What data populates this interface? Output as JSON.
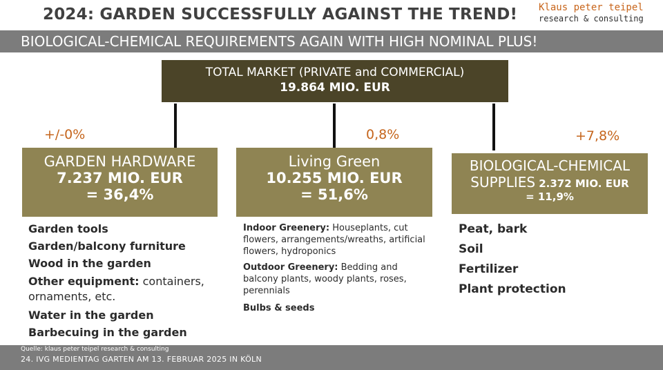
{
  "header": {
    "title": "2024: GARDEN SUCCESSFULLY AGAINST THE TREND!",
    "logo_line1": "Klaus peter teipel",
    "logo_line2": "research & consulting"
  },
  "subtitle": "BIOLOGICAL-CHEMICAL REQUIREMENTS AGAIN WITH HIGH NOMINAL PLUS!",
  "total": {
    "label": "TOTAL MARKET (PRIVATE and COMMERCIAL)",
    "value": "19.864 MIO. EUR"
  },
  "segments": [
    {
      "change": "+/-0%",
      "name": "GARDEN HARDWARE",
      "value": "7.237 MIO. EUR",
      "share": "= 36,4%",
      "items": [
        {
          "bold": "Garden tools",
          "plain": ""
        },
        {
          "bold": "Garden/balcony furniture",
          "plain": ""
        },
        {
          "bold": "Wood in the garden",
          "plain": ""
        },
        {
          "bold": "Other equipment:",
          "plain": " containers, ornaments, etc."
        },
        {
          "bold": "Water in the garden",
          "plain": ""
        },
        {
          "bold": "Barbecuing in the garden",
          "plain": ""
        }
      ]
    },
    {
      "change": "0,8%",
      "name": "Living Green",
      "value": "10.255 MIO. EUR",
      "share": "= 51,6%",
      "items": [
        {
          "bold": "Indoor Greenery:",
          "plain": " Houseplants, cut flowers, arrangements/wreaths, artificial flowers, hydroponics"
        },
        {
          "bold": "Outdoor Greenery:",
          "plain": " Bedding and balcony plants, woody plants, roses, perennials"
        },
        {
          "bold": "Bulbs & seeds",
          "plain": ""
        }
      ]
    },
    {
      "change": "+7,8%",
      "name_line1": "BIOLOGICAL-CHEMICAL",
      "name_line2": "SUPPLIES",
      "value": "2.372 MIO. EUR",
      "share": "= 11,9%",
      "items": [
        {
          "bold": "Peat, bark",
          "plain": ""
        },
        {
          "bold": "Soil",
          "plain": ""
        },
        {
          "bold": "Fertilizer",
          "plain": ""
        },
        {
          "bold": "Plant protection",
          "plain": ""
        }
      ]
    }
  ],
  "footer": {
    "source": "Quelle: klaus peter teipel research & consulting",
    "event": "24. IVG MEDIENTAG GARTEN AM 13. FEBRUAR 2025 IN KÖLN"
  }
}
